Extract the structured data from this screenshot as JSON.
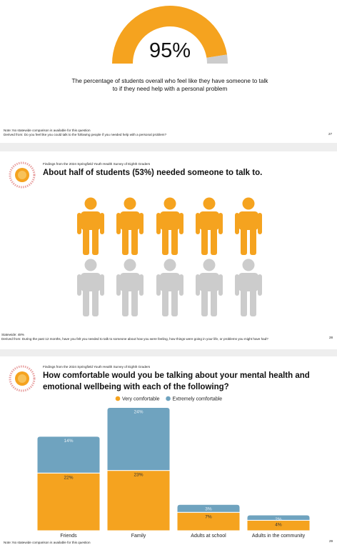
{
  "pages": [
    {
      "gauge": {
        "value": 95,
        "value_label": "95%",
        "color": "#f5a31f",
        "track_color": "#cccccc"
      },
      "caption": "The percentage of students overall who feel like they have someone to talk to if they need help with a personal problem",
      "notes": [
        "Note: No statewide comparison is available for this question",
        "Derived from: Do you feel like you could talk to the following people if you needed help with a personal problem?"
      ],
      "page_number": 27
    },
    {
      "subtitle": "Findings from the 2024 Springfield Youth Health Survey of Eighth Graders",
      "title": "About half of students (53%) needed someone to talk to.",
      "notes": [
        "Statewide: 48%",
        "Derived from: During the past 12 months, have you felt you needed to talk to someone about how you were feeling, how things were going in your life, or problems you might have had?"
      ],
      "page_number": 28
    },
    {
      "subtitle": "Findings from the 2024 Springfield Youth Health Survey of Eighth Graders",
      "title": "How comfortable would you be talking about your mental health and emotional wellbeing with each of the following?",
      "chart_data": {
        "type": "stacked_bar",
        "categories": [
          "Friends",
          "Family",
          "Adults at school",
          "Adults in the community"
        ],
        "series": [
          {
            "name": "Very comfortable",
            "color": "#f5a31f",
            "values": [
              22,
              23,
              7,
              4
            ],
            "value_labels": [
              "22%",
              "23%",
              "7%",
              "4%"
            ]
          },
          {
            "name": "Extremely comfortable",
            "color": "#6fa3bf",
            "values": [
              14,
              24,
              3,
              2
            ],
            "value_labels": [
              "14%",
              "24%",
              "3%",
              "2%"
            ]
          }
        ]
      },
      "notes": [
        "Note: No statewide comparison is available for this question"
      ],
      "page_number": 29
    }
  ]
}
